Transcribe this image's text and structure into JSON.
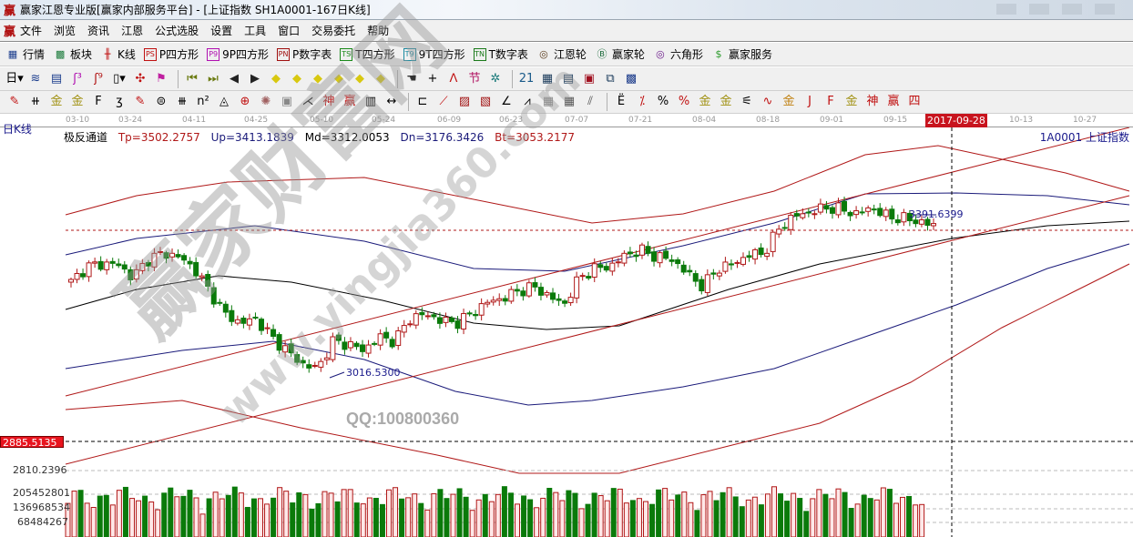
{
  "window": {
    "logo": "赢",
    "title": "赢家江恩专业版[赢家内部服务平台] - [上证指数  SH1A0001-167日K线]"
  },
  "menu": {
    "logo": "赢",
    "items": [
      "文件",
      "浏览",
      "资讯",
      "江恩",
      "公式选股",
      "设置",
      "工具",
      "窗口",
      "交易委托",
      "帮助"
    ]
  },
  "toolbar1": [
    {
      "icon": "quote-table-icon",
      "glyph": "▦",
      "label": "行情",
      "color": "#1a3c8c"
    },
    {
      "icon": "sector-block-icon",
      "glyph": "▩",
      "label": "板块",
      "color": "#1a7a3a"
    },
    {
      "icon": "kline-icon",
      "glyph": "╫",
      "label": "K线",
      "color": "#c01010"
    },
    {
      "icon": "ps-icon",
      "glyph": "PS",
      "label": "P四方形",
      "color": "#c01010",
      "box": true
    },
    {
      "icon": "p9-icon",
      "glyph": "P9",
      "label": "9P四方形",
      "color": "#b010b0",
      "box": true
    },
    {
      "icon": "pn-icon",
      "glyph": "PN",
      "label": "P数字表",
      "color": "#a01010",
      "box": true
    },
    {
      "icon": "ts-icon",
      "glyph": "TS",
      "label": "T四方形",
      "color": "#1a8a1a",
      "box": true
    },
    {
      "icon": "t9-icon",
      "glyph": "T9",
      "label": "9T四方形",
      "color": "#1a8aa0",
      "box": true
    },
    {
      "icon": "tn-icon",
      "glyph": "TN",
      "label": "T数字表",
      "color": "#1a7a1a",
      "box": true
    },
    {
      "icon": "gann-wheel-icon",
      "glyph": "◎",
      "label": "江恩轮",
      "color": "#5a3a1a"
    },
    {
      "icon": "big-wheel-icon",
      "glyph": "Ⓑ",
      "label": "赢家轮",
      "color": "#1a6a3a"
    },
    {
      "icon": "hexagon-icon",
      "glyph": "◎",
      "label": "六角形",
      "color": "#6a1a8a"
    },
    {
      "icon": "dollar-icon",
      "glyph": "$",
      "label": "赢家服务",
      "color": "#2a9a2a"
    }
  ],
  "toolbar2": [
    {
      "icon": "period-day-icon",
      "glyph": "日▾",
      "color": "#000"
    },
    {
      "icon": "chart-style-icon",
      "glyph": "≋",
      "color": "#1a3c8c"
    },
    {
      "icon": "document-icon",
      "glyph": "▤",
      "color": "#1a3c8c"
    },
    {
      "icon": "step3-icon",
      "glyph": "ʃ³",
      "color": "#b010b0"
    },
    {
      "icon": "step9-icon",
      "glyph": "ʃ⁹",
      "color": "#b01010"
    },
    {
      "icon": "candle-type-icon",
      "glyph": "▯▾",
      "color": "#000"
    },
    {
      "icon": "map-icon",
      "glyph": "✣",
      "color": "#c01010"
    },
    {
      "icon": "flag-icon",
      "glyph": "⚑",
      "color": "#c020a0"
    },
    {
      "sep": true
    },
    {
      "icon": "first-icon",
      "glyph": "⏮",
      "color": "#6a7a10"
    },
    {
      "icon": "last-icon",
      "glyph": "⏭",
      "color": "#6a7a10"
    },
    {
      "icon": "left-arrow-icon",
      "glyph": "◀",
      "color": "#222"
    },
    {
      "icon": "right-arrow-icon",
      "glyph": "▶",
      "color": "#222"
    },
    {
      "icon": "diamond-left-icon",
      "glyph": "◆",
      "color": "#d8c810"
    },
    {
      "icon": "diamond-right-icon",
      "glyph": "◆",
      "color": "#d8c810"
    },
    {
      "icon": "diamond-expand-icon",
      "glyph": "◆",
      "color": "#d8c810"
    },
    {
      "icon": "diamond-shrink-icon",
      "glyph": "◆",
      "color": "#d8c810"
    },
    {
      "icon": "diamond-zoom-icon",
      "glyph": "◆",
      "color": "#d8c810"
    },
    {
      "icon": "diamond-updown-icon",
      "glyph": "◆",
      "color": "#d8c810"
    },
    {
      "sep": true
    },
    {
      "icon": "hand-icon",
      "glyph": "☚",
      "color": "#333"
    },
    {
      "icon": "crosshair-icon",
      "glyph": "+",
      "color": "#000"
    },
    {
      "icon": "line-tool-icon",
      "glyph": "ᐱ",
      "color": "#c01010"
    },
    {
      "icon": "festival-icon",
      "glyph": "节",
      "color": "#b01060"
    },
    {
      "icon": "gear-pattern-icon",
      "glyph": "✲",
      "color": "#1a7a7a"
    },
    {
      "sep": true
    },
    {
      "icon": "calendar-icon",
      "glyph": "21",
      "color": "#1a5a8a"
    },
    {
      "icon": "calculator-icon",
      "glyph": "▦",
      "color": "#1a3a5a"
    },
    {
      "icon": "notebook-icon",
      "glyph": "▤",
      "color": "#1a3a5a"
    },
    {
      "icon": "save-icon",
      "glyph": "▣",
      "color": "#a01020"
    },
    {
      "icon": "network-icon",
      "glyph": "⧉",
      "color": "#1a3a5a"
    },
    {
      "icon": "computer-icon",
      "glyph": "▩",
      "color": "#1a3a8a"
    }
  ],
  "toolbar3": [
    {
      "icon": "pen-icon",
      "glyph": "✎",
      "color": "#c01010"
    },
    {
      "icon": "parallel-lines-icon",
      "glyph": "⧺",
      "color": "#000"
    },
    {
      "icon": "gold-line-icon",
      "glyph": "金",
      "color": "#a09010"
    },
    {
      "icon": "gold-line2-icon",
      "glyph": "金",
      "color": "#a09010"
    },
    {
      "icon": "fib-icon",
      "glyph": "F",
      "color": "#000"
    },
    {
      "icon": "spiral-icon",
      "glyph": "ʒ",
      "color": "#000"
    },
    {
      "icon": "pen-ruler-icon",
      "glyph": "✎",
      "color": "#c01010"
    },
    {
      "icon": "circle-ruler-icon",
      "glyph": "⊜",
      "color": "#000"
    },
    {
      "icon": "quad-lines-icon",
      "glyph": "⧻",
      "color": "#000"
    },
    {
      "icon": "n-square-icon",
      "glyph": "n²",
      "color": "#000"
    },
    {
      "icon": "triangle-icon",
      "glyph": "◬",
      "color": "#000"
    },
    {
      "icon": "target-icon",
      "glyph": "⊕",
      "color": "#c01010"
    },
    {
      "icon": "radiate-icon",
      "glyph": "✺",
      "color": "#a06060"
    },
    {
      "icon": "square-box-icon",
      "glyph": "▣",
      "color": "#888"
    },
    {
      "icon": "angle-lines-icon",
      "glyph": "⋌",
      "color": "#000"
    },
    {
      "icon": "shen-icon",
      "glyph": "神",
      "color": "#c01010"
    },
    {
      "icon": "ying-icon",
      "glyph": "赢",
      "color": "#c01010"
    },
    {
      "icon": "ruler-123-icon",
      "glyph": "▥",
      "color": "#000"
    },
    {
      "icon": "measure-icon",
      "glyph": "↔",
      "color": "#000"
    },
    {
      "sep": true
    },
    {
      "icon": "box-line-icon",
      "glyph": "⊏",
      "color": "#000"
    },
    {
      "icon": "fan-icon",
      "glyph": "⟋",
      "color": "#c01010"
    },
    {
      "icon": "fan-box-icon",
      "glyph": "▨",
      "color": "#a01010"
    },
    {
      "icon": "fan-box2-icon",
      "glyph": "▧",
      "color": "#a01010"
    },
    {
      "icon": "angle-icon",
      "glyph": "∠",
      "color": "#000"
    },
    {
      "icon": "zigzag-icon",
      "glyph": "⩘",
      "color": "#000"
    },
    {
      "icon": "grid-icon",
      "glyph": "▦",
      "color": "#888"
    },
    {
      "icon": "grid2-icon",
      "glyph": "▦",
      "color": "#555"
    },
    {
      "icon": "multi-lines-icon",
      "glyph": "⫽",
      "color": "#555"
    },
    {
      "sep": true
    },
    {
      "icon": "ladder-icon",
      "glyph": "Ë",
      "color": "#000"
    },
    {
      "icon": "percent-line-icon",
      "glyph": "⁒",
      "color": "#c01010"
    },
    {
      "icon": "percent-icon",
      "glyph": "%",
      "color": "#000"
    },
    {
      "icon": "percent-lines-icon",
      "glyph": "%",
      "color": "#c01010"
    },
    {
      "icon": "gold-circle-icon",
      "glyph": "金",
      "color": "#a09010"
    },
    {
      "icon": "gold-lines-icon",
      "glyph": "金",
      "color": "#a09010"
    },
    {
      "icon": "speaker-icon",
      "glyph": "⚟",
      "color": "#000"
    },
    {
      "icon": "wave-icon",
      "glyph": "∿",
      "color": "#c01010"
    },
    {
      "icon": "gold-underline-icon",
      "glyph": "金",
      "color": "#c08010"
    },
    {
      "icon": "j-angle-icon",
      "glyph": "J",
      "color": "#c01010"
    },
    {
      "icon": "f-angle-icon",
      "glyph": "F",
      "color": "#c01010"
    },
    {
      "icon": "gold-angle-icon",
      "glyph": "金",
      "color": "#a09010"
    },
    {
      "icon": "shen-angle-icon",
      "glyph": "神",
      "color": "#c01010"
    },
    {
      "icon": "ying-angle-icon",
      "glyph": "赢",
      "color": "#c01010"
    },
    {
      "icon": "four-angle-icon",
      "glyph": "四",
      "color": "#c01010"
    }
  ],
  "date_axis": {
    "labels": [
      "03-10",
      "03-24",
      "04-11",
      "04-25",
      "05-10",
      "05-24",
      "06-09",
      "06-23",
      "07-07",
      "07-21",
      "08-04",
      "08-18",
      "09-01",
      "09-15",
      "10-13",
      "10-27"
    ],
    "current": "2017-09-28"
  },
  "chart_header": {
    "period": "日K线",
    "indicator": "极反通道",
    "tp": "Tp=3502.2757",
    "up": "Up=3413.1839",
    "md": "Md=3312.0053",
    "dn": "Dn=3176.3426",
    "bt": "Bt=3053.2177",
    "code": "1A0001  上证指数"
  },
  "annotations": {
    "high": "3391.6399",
    "low": "3016.5300",
    "price_marker": "2885.5135"
  },
  "volume_axis": {
    "top": "2810.2396",
    "l1": "205452801",
    "l2": "136968534",
    "l3": "68484267"
  },
  "watermark": {
    "brand": "赢家财富网",
    "site": "www.yingjia360.com",
    "qq": "QQ:100800360"
  },
  "colors": {
    "up": "#b01818",
    "down": "#0a7a0a",
    "channel_red": "#b01818",
    "band_blue": "#1a1a7a",
    "mid_black": "#000000"
  },
  "chart_data": {
    "type": "candlestick",
    "note_price_path": [
      3240.8,
      3275.3,
      3281.4,
      3281.4,
      3250.9,
      3291.5,
      3305.7,
      3297.6,
      3271.2,
      3220.5,
      3169.7,
      3149.4,
      3159.6,
      3119.0,
      3088.5,
      3058.1,
      3047.9,
      3108.8,
      3102.7,
      3088.5,
      3119.0,
      3108.8,
      3159.6,
      3169.7,
      3155.5,
      3149.4,
      3169.7,
      3196.1,
      3204.2,
      3220.5,
      3230.6,
      3210.3,
      3190.0,
      3250.9,
      3271.2,
      3275.3,
      3301.7,
      3311.8,
      3297.6,
      3291.5,
      3261.0,
      3230.6,
      3271.2,
      3281.4,
      3301.7,
      3305.7,
      3362.6,
      3388.9,
      3397.1,
      3407.2,
      3403.2,
      3393.0,
      3407.2,
      3386.9,
      3382.9,
      3376.8,
      3366.6
    ],
    "last_close": 3366.6,
    "high": 3391.6399,
    "low": 3016.53
  }
}
